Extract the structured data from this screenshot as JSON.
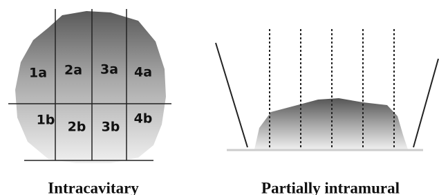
{
  "left": {
    "labels": [
      "1a",
      "2a",
      "3a",
      "4a",
      "1b",
      "2b",
      "3b",
      "4b"
    ],
    "caption": "Intracavitary"
  },
  "right": {
    "caption": "Partially intramural"
  }
}
